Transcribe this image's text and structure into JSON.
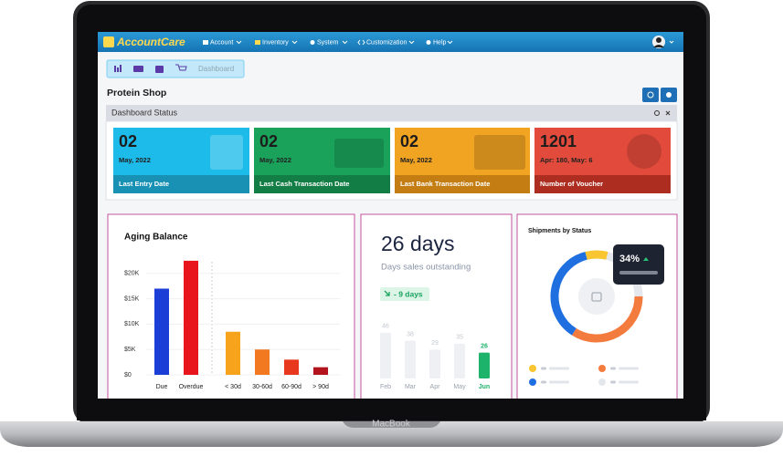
{
  "navbar": {
    "logo": "AccountCare",
    "menu": [
      "Account",
      "Inventory",
      "System",
      "Customization",
      "Help"
    ]
  },
  "breadcrumb": "Dashboard",
  "page_title": "Protein Shop",
  "panel_title": "Dashboard Status",
  "cards": [
    {
      "value": "02",
      "subtitle": "May, 2022",
      "label": "Last Entry Date"
    },
    {
      "value": "02",
      "subtitle": "May, 2022",
      "label": "Last Cash Transaction Date"
    },
    {
      "value": "02",
      "subtitle": "May, 2022",
      "label": "Last Bank Transaction Date"
    },
    {
      "value": "1201",
      "subtitle": "Apr: 180, May: 6",
      "label": "Number of Voucher"
    }
  ],
  "chart_data": [
    {
      "type": "bar",
      "title": "Aging Balance",
      "categories": [
        "Due",
        "Overdue",
        "< 30d",
        "30-60d",
        "60-90d",
        "> 90d"
      ],
      "values": [
        17000,
        22500,
        8500,
        5000,
        3000,
        1500
      ],
      "colors": [
        "#1b3fd6",
        "#e8151d",
        "#f7a31c",
        "#f2791f",
        "#e8391f",
        "#b3131c"
      ],
      "ylim": [
        0,
        25000
      ],
      "yticks": [
        {
          "value": 0,
          "label": "$0"
        },
        {
          "value": 5000,
          "label": "$5K"
        },
        {
          "value": 10000,
          "label": "$10K"
        },
        {
          "value": 15000,
          "label": "$15K"
        },
        {
          "value": 20000,
          "label": "$20K"
        }
      ],
      "grid": true
    },
    {
      "type": "bar",
      "title": "26 days",
      "subtitle": "Days sales outstanding",
      "annotation": "- 9 days",
      "categories": [
        "Feb",
        "Mar",
        "Apr",
        "May",
        "Jun"
      ],
      "values": [
        46,
        38,
        29,
        35,
        26
      ],
      "colors": [
        "#eef0f4",
        "#eef0f4",
        "#eef0f4",
        "#eef0f4",
        "#1db36b"
      ]
    },
    {
      "type": "donut",
      "title": "Shipments by Status",
      "values": [
        8,
        21,
        34,
        37
      ],
      "value_labels": [
        null,
        null,
        "34%",
        null
      ],
      "colors": [
        "#f9c531",
        "#e4e7ec",
        "#f47b3e",
        "#1f6fe0"
      ]
    }
  ],
  "device_label": "MacBook"
}
